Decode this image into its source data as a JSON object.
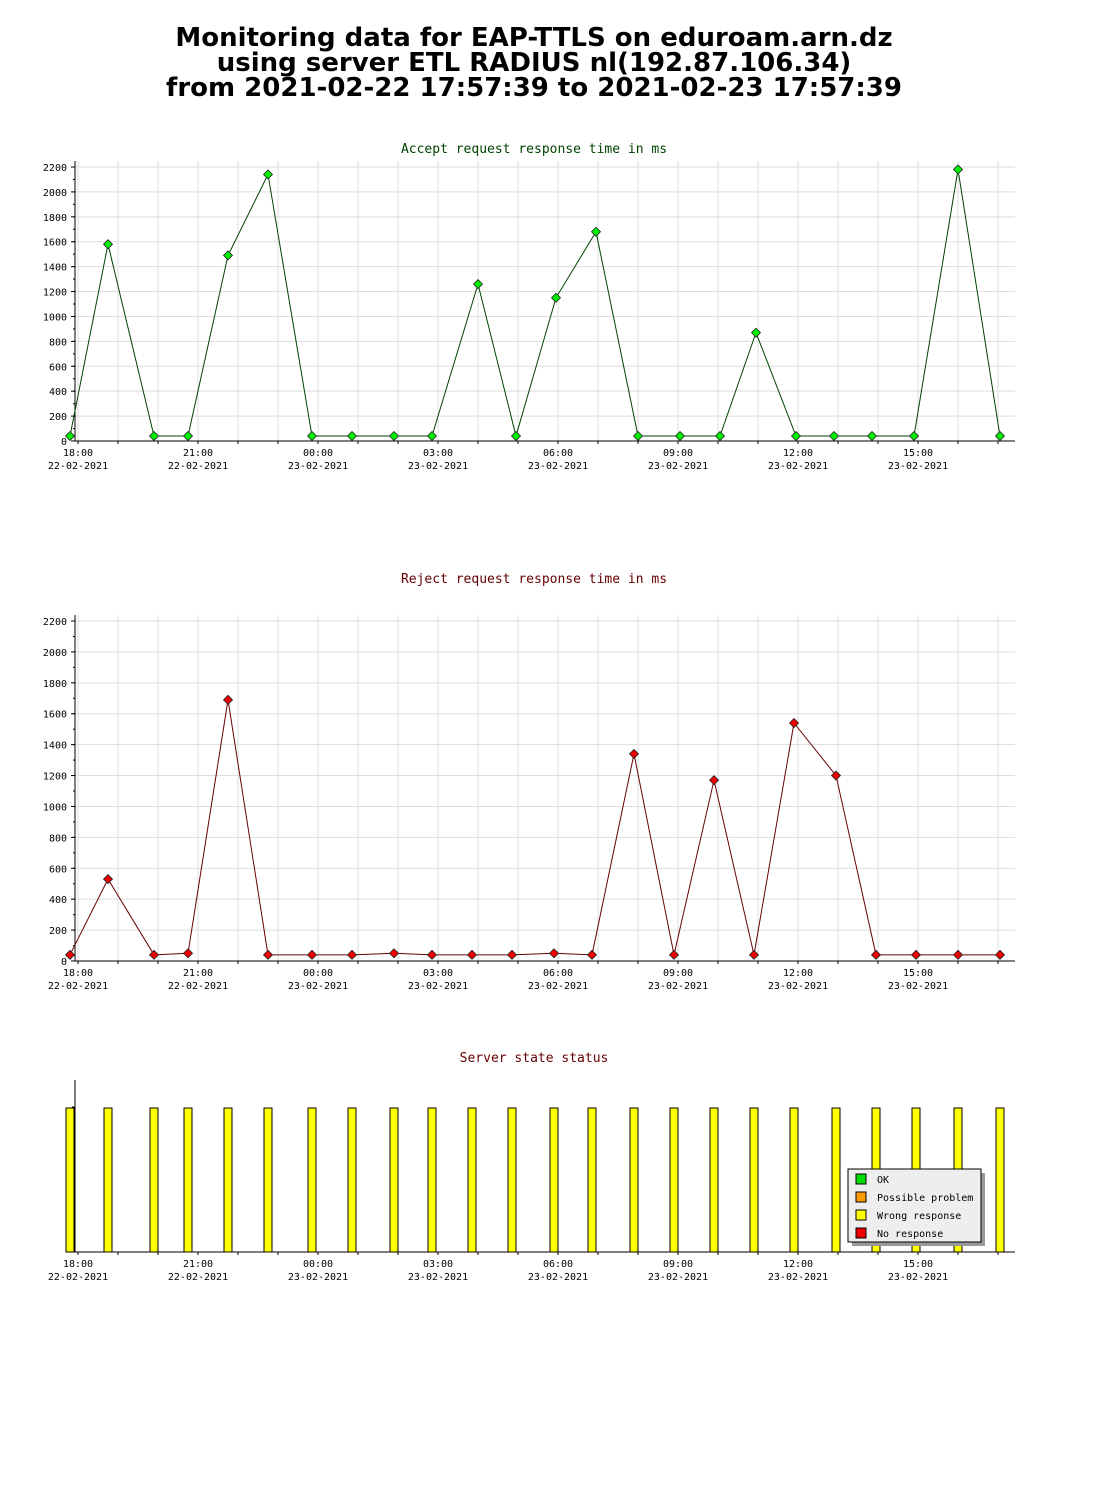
{
  "header": {
    "title_lines": [
      "Monitoring data for EAP-TTLS on eduroam.arn.dz",
      "using server ETL RADIUS nl(192.87.106.34)",
      "from 2021-02-22 17:57:39 to 2021-02-23 17:57:39"
    ]
  },
  "x_ticks": [
    {
      "time": "18:00",
      "date": "22-02-2021"
    },
    {
      "time": "21:00",
      "date": "22-02-2021"
    },
    {
      "time": "00:00",
      "date": "23-02-2021"
    },
    {
      "time": "03:00",
      "date": "23-02-2021"
    },
    {
      "time": "06:00",
      "date": "23-02-2021"
    },
    {
      "time": "09:00",
      "date": "23-02-2021"
    },
    {
      "time": "12:00",
      "date": "23-02-2021"
    },
    {
      "time": "15:00",
      "date": "23-02-2021"
    }
  ],
  "colors": {
    "accept_line": "#004400",
    "accept_marker": "#00ee00",
    "reject_line": "#660000",
    "reject_marker": "#ee0000",
    "ok": "#00dd00",
    "possible_problem": "#ff9900",
    "wrong_response": "#ffff00",
    "no_response": "#ee0000",
    "grid": "#dddddd"
  },
  "chart_data": [
    {
      "type": "line",
      "title": "Accept request response time in ms",
      "x_unit": "hours from 18:00 22-02-2021",
      "ylim": [
        0,
        2200
      ],
      "yticks": [
        0,
        200,
        400,
        600,
        800,
        1000,
        1200,
        1400,
        1600,
        1800,
        2000,
        2200
      ],
      "x": [
        -0.2,
        0.75,
        1.9,
        2.75,
        3.75,
        4.75,
        5.85,
        6.85,
        7.9,
        8.85,
        10.0,
        10.95,
        11.95,
        12.95,
        14.0,
        15.05,
        16.05,
        16.95,
        17.95,
        18.9,
        19.85,
        20.9,
        22.0,
        23.05
      ],
      "y": [
        40,
        1580,
        40,
        40,
        1490,
        2140,
        40,
        40,
        40,
        40,
        1260,
        40,
        1150,
        1680,
        40,
        40,
        40,
        870,
        40,
        40,
        40,
        40,
        2180,
        40
      ]
    },
    {
      "type": "line",
      "title": "Reject request response time in ms",
      "x_unit": "hours from 18:00 22-02-2021",
      "ylim": [
        0,
        2200
      ],
      "yticks": [
        0,
        200,
        400,
        600,
        800,
        1000,
        1200,
        1400,
        1600,
        1800,
        2000,
        2200
      ],
      "x": [
        -0.2,
        0.75,
        1.9,
        2.75,
        3.75,
        4.75,
        5.85,
        6.85,
        7.9,
        8.85,
        9.85,
        10.85,
        11.9,
        12.85,
        13.9,
        14.9,
        15.9,
        16.9,
        17.9,
        18.95,
        19.95,
        20.95,
        22.0,
        23.05
      ],
      "y": [
        40,
        530,
        40,
        50,
        1690,
        40,
        40,
        40,
        50,
        40,
        40,
        40,
        50,
        40,
        1340,
        40,
        1170,
        40,
        1540,
        1200,
        40,
        40,
        40,
        40
      ]
    },
    {
      "type": "bar",
      "title": "Server state status",
      "x_unit": "hours from 18:00 22-02-2021",
      "x": [
        -0.2,
        0.75,
        1.9,
        2.75,
        3.75,
        4.75,
        5.85,
        6.85,
        7.9,
        8.85,
        9.85,
        10.85,
        11.9,
        12.85,
        13.9,
        14.9,
        15.9,
        16.9,
        17.9,
        18.95,
        19.95,
        20.95,
        22.0,
        23.05
      ],
      "states": [
        "wrong_response",
        "wrong_response",
        "wrong_response",
        "wrong_response",
        "wrong_response",
        "wrong_response",
        "wrong_response",
        "wrong_response",
        "wrong_response",
        "wrong_response",
        "wrong_response",
        "wrong_response",
        "wrong_response",
        "wrong_response",
        "wrong_response",
        "wrong_response",
        "wrong_response",
        "wrong_response",
        "wrong_response",
        "wrong_response",
        "wrong_response",
        "wrong_response",
        "wrong_response",
        "wrong_response"
      ],
      "legend": [
        {
          "key": "ok",
          "label": "OK"
        },
        {
          "key": "possible_problem",
          "label": "Possible problem"
        },
        {
          "key": "wrong_response",
          "label": "Wrong response"
        },
        {
          "key": "no_response",
          "label": "No response"
        }
      ],
      "legend_placement": "bottom-right"
    }
  ]
}
